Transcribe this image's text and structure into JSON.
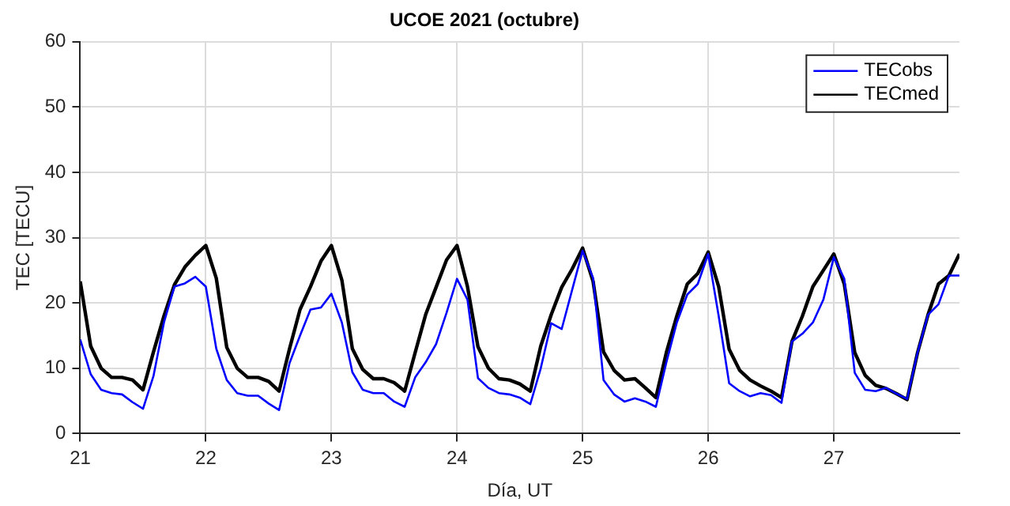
{
  "chart_data": {
    "type": "line",
    "title": "UCOE 2021 (octubre)",
    "xlabel": "Día, UT",
    "ylabel": "TEC [TECU]",
    "x": [
      21,
      21.0833,
      21.1667,
      21.25,
      21.3333,
      21.4167,
      21.5,
      21.5833,
      21.6667,
      21.75,
      21.8333,
      21.9167,
      22,
      22.0833,
      22.1667,
      22.25,
      22.3333,
      22.4167,
      22.5,
      22.5833,
      22.6667,
      22.75,
      22.8333,
      22.9167,
      23,
      23.0833,
      23.1667,
      23.25,
      23.3333,
      23.4167,
      23.5,
      23.5833,
      23.6667,
      23.75,
      23.8333,
      23.9167,
      24,
      24.0833,
      24.1667,
      24.25,
      24.3333,
      24.4167,
      24.5,
      24.5833,
      24.6667,
      24.75,
      24.8333,
      24.9167,
      25,
      25.0833,
      25.1667,
      25.25,
      25.3333,
      25.4167,
      25.5,
      25.5833,
      25.6667,
      25.75,
      25.8333,
      25.9167,
      26,
      26.0833,
      26.1667,
      26.25,
      26.3333,
      26.4167,
      26.5,
      26.5833,
      26.6667,
      26.75,
      26.8333,
      26.9167,
      27,
      27.0833,
      27.1667,
      27.25,
      27.3333,
      27.4167,
      27.5,
      27.5833,
      27.6667,
      27.75,
      27.8333,
      27.9167,
      28
    ],
    "series": [
      {
        "name": "TECobs",
        "color": "#0000ff",
        "values": [
          14.4,
          9.1,
          6.7,
          6.2,
          6,
          4.8,
          3.8,
          8.8,
          17,
          22.5,
          23,
          24,
          22.5,
          13,
          8.2,
          6.2,
          5.8,
          5.8,
          4.6,
          3.6,
          10.8,
          15,
          19,
          19.3,
          21.4,
          17,
          9.4,
          6.7,
          6.2,
          6.2,
          4.9,
          4.1,
          8.6,
          10.9,
          13.7,
          18.5,
          23.7,
          20.5,
          8.5,
          7,
          6.2,
          6,
          5.5,
          4.5,
          10,
          16.9,
          16,
          22,
          28,
          23.8,
          8.2,
          6,
          4.9,
          5.4,
          4.9,
          4.1,
          10.9,
          17,
          21.3,
          22.9,
          27.5,
          18,
          7.7,
          6.5,
          5.7,
          6.2,
          5.9,
          4.7,
          14.1,
          15.3,
          17,
          20.5,
          27,
          23.7,
          9.3,
          6.7,
          6.5,
          7,
          6.1,
          5.3,
          12.4,
          18.2,
          19.8,
          24.2,
          24.2
        ]
      },
      {
        "name": "TECmed",
        "color": "#000000",
        "values": [
          23.3,
          13.4,
          10,
          8.6,
          8.6,
          8.2,
          6.7,
          12.5,
          18,
          22.8,
          25.5,
          27.3,
          28.8,
          23.8,
          13.2,
          10,
          8.6,
          8.6,
          8,
          6.5,
          13,
          19,
          22.5,
          26.4,
          28.8,
          23.5,
          13,
          9.8,
          8.4,
          8.4,
          7.8,
          6.5,
          12.4,
          18.2,
          22.4,
          26.6,
          28.8,
          22.5,
          13.3,
          10,
          8.4,
          8.2,
          7.6,
          6.5,
          13.4,
          18.2,
          22.4,
          25.2,
          28.4,
          23.3,
          12.5,
          9.7,
          8.2,
          8.4,
          7,
          5.5,
          12.4,
          18,
          22.9,
          24.5,
          27.8,
          22.5,
          12.9,
          9.7,
          8.2,
          7.3,
          6.5,
          5.5,
          14.1,
          18,
          22.5,
          25,
          27.5,
          22.9,
          12.4,
          8.9,
          7.4,
          6.9,
          6.1,
          5.2,
          12.4,
          18.2,
          22.9,
          24.2,
          27.5
        ]
      }
    ],
    "xlim": [
      21,
      28
    ],
    "xticks": [
      21,
      22,
      23,
      24,
      25,
      26,
      27
    ],
    "ylim": [
      0,
      60
    ],
    "yticks": [
      0,
      10,
      20,
      30,
      40,
      50,
      60
    ],
    "grid": true,
    "legend": "top right",
    "marker": "none",
    "line_style": "solid"
  }
}
